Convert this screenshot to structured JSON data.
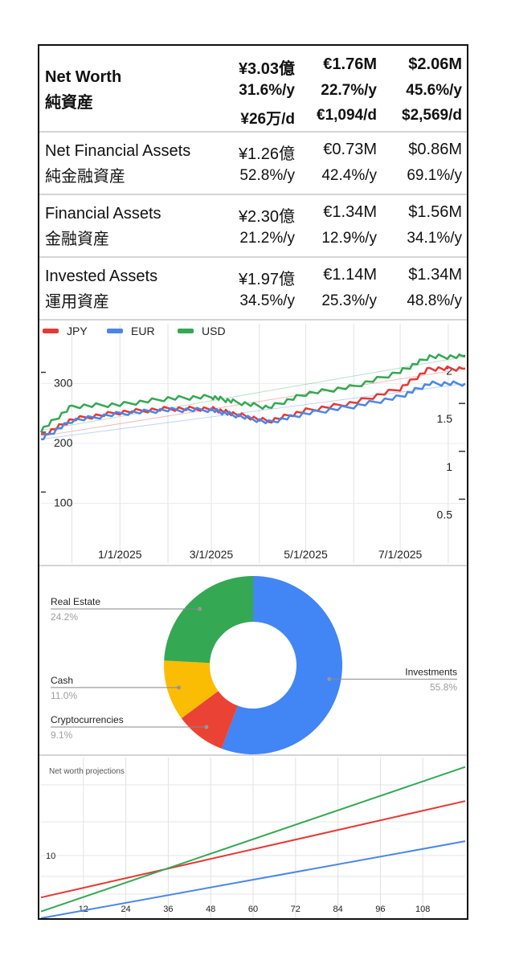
{
  "summary": {
    "rows": [
      {
        "label_en": "Net Worth",
        "label_ja": "純資産",
        "bold": true,
        "totals": [
          "¥3.03億",
          "€1.76M",
          "$2.06M"
        ],
        "rates": [
          "31.6%/y",
          "22.7%/y",
          "45.6%/y"
        ],
        "daily": [
          "¥26万/d",
          "€1,094/d",
          "$2,569/d"
        ]
      },
      {
        "label_en": "Net Financial Assets",
        "label_ja": "純金融資産",
        "bold": false,
        "totals": [
          "¥1.26億",
          "€0.73M",
          "$0.86M"
        ],
        "rates": [
          "52.8%/y",
          "42.4%/y",
          "69.1%/y"
        ]
      },
      {
        "label_en": "Financial Assets",
        "label_ja": "金融資産",
        "bold": false,
        "totals": [
          "¥2.30億",
          "€1.34M",
          "$1.56M"
        ],
        "rates": [
          "21.2%/y",
          "12.9%/y",
          "34.1%/y"
        ]
      },
      {
        "label_en": "Invested Assets",
        "label_ja": "運用資産",
        "bold": false,
        "totals": [
          "¥1.97億",
          "€1.14M",
          "$1.34M"
        ],
        "rates": [
          "34.5%/y",
          "25.3%/y",
          "48.8%/y"
        ]
      }
    ]
  },
  "chart_data": [
    {
      "type": "line",
      "title": "",
      "legend": {
        "position": "top-left",
        "entries": [
          "JPY",
          "EUR",
          "USD"
        ]
      },
      "x_ticks": [
        "1/1/2025",
        "3/1/2025",
        "5/1/2025",
        "7/1/2025"
      ],
      "x_range": [
        "2024-11-11",
        "2025-08-12"
      ],
      "y_left": {
        "ticks": [
          "100",
          "200",
          "300"
        ],
        "range": [
          0,
          400
        ]
      },
      "y_right": {
        "ticks": [
          "0.5",
          "1",
          "1.5",
          "2"
        ],
        "range": [
          0,
          2.5
        ]
      },
      "grid": true,
      "colors": {
        "JPY": "#e53935",
        "EUR": "#4a86e8",
        "USD": "#34a853"
      },
      "series": [
        {
          "name": "JPY",
          "axis": "left",
          "x": [
            "2024-11-11",
            "2024-12-01",
            "2025-01-01",
            "2025-02-01",
            "2025-03-01",
            "2025-03-15",
            "2025-04-07",
            "2025-05-01",
            "2025-06-01",
            "2025-07-01",
            "2025-07-20",
            "2025-08-12"
          ],
          "y": [
            212,
            240,
            252,
            258,
            258,
            250,
            237,
            255,
            268,
            292,
            325,
            325
          ]
        },
        {
          "name": "EUR",
          "axis": "left",
          "x": [
            "2024-11-11",
            "2024-12-01",
            "2025-01-01",
            "2025-02-01",
            "2025-03-01",
            "2025-03-15",
            "2025-04-07",
            "2025-05-01",
            "2025-06-01",
            "2025-07-01",
            "2025-07-20",
            "2025-08-12"
          ],
          "y": [
            207,
            238,
            250,
            256,
            256,
            248,
            235,
            250,
            262,
            278,
            300,
            300
          ]
        },
        {
          "name": "USD",
          "axis": "left",
          "x": [
            "2024-11-11",
            "2024-12-01",
            "2025-01-01",
            "2025-02-01",
            "2025-03-01",
            "2025-03-15",
            "2025-04-07",
            "2025-05-01",
            "2025-06-01",
            "2025-07-01",
            "2025-07-20",
            "2025-08-12"
          ],
          "y": [
            222,
            262,
            265,
            275,
            278,
            270,
            260,
            283,
            295,
            320,
            345,
            345
          ]
        }
      ]
    },
    {
      "type": "pie",
      "donut": true,
      "slices": [
        {
          "label": "Investments",
          "value": 55.8,
          "text": "55.8%",
          "color": "#4285f4"
        },
        {
          "label": "Cryptocurrencies",
          "value": 9.1,
          "text": "9.1%",
          "color": "#ea4335"
        },
        {
          "label": "Cash",
          "value": 11.0,
          "text": "11.0%",
          "color": "#fbbc04"
        },
        {
          "label": "Real Estate",
          "value": 24.2,
          "text": "24.2%",
          "color": "#34a853"
        }
      ]
    },
    {
      "type": "line",
      "title": "Net worth projections",
      "x_ticks": [
        "12",
        "24",
        "36",
        "48",
        "60",
        "72",
        "84",
        "96",
        "108"
      ],
      "x_range": [
        0,
        120
      ],
      "y_ticks": [
        "10"
      ],
      "grid": true,
      "series": [
        {
          "color": "#e53935",
          "x": [
            0,
            120
          ],
          "y": [
            0.31,
            1.75
          ]
        },
        {
          "color": "#34a853",
          "x": [
            0,
            120
          ],
          "y": [
            0.1,
            2.26
          ]
        },
        {
          "color": "#4a86e8",
          "x": [
            0,
            120
          ],
          "y": [
            0.0,
            1.15
          ]
        }
      ]
    }
  ]
}
